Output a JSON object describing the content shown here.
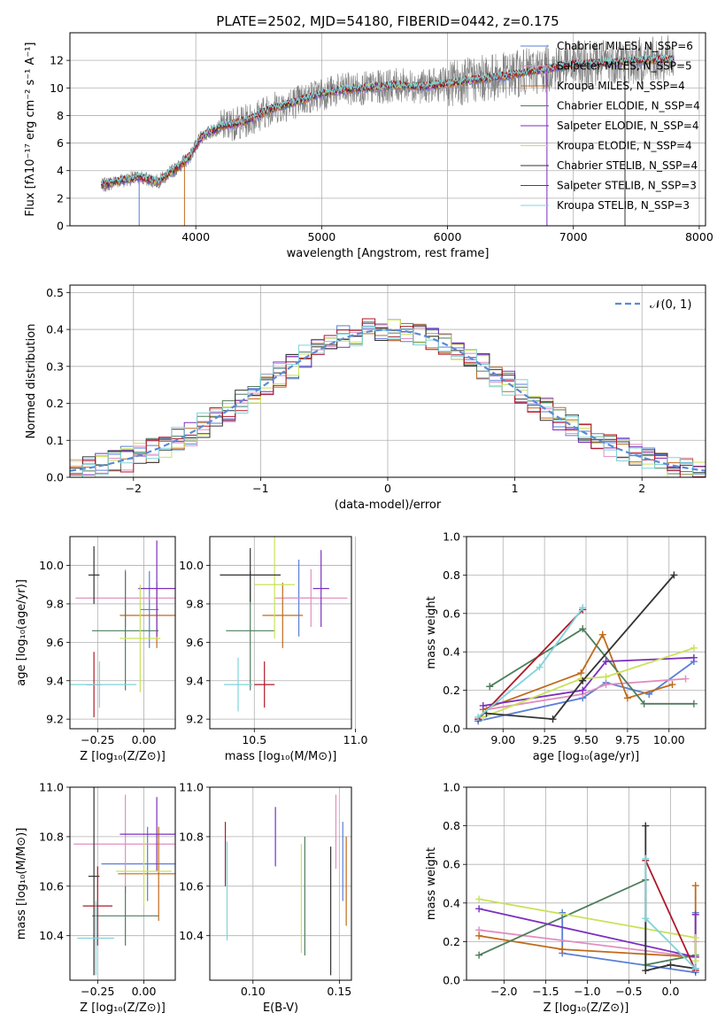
{
  "figure": {
    "title": "PLATE=2502, MJD=54180, FIBERID=0442, z=0.175"
  },
  "colors": {
    "data": "#808080",
    "series": [
      "#5a7fd6",
      "#e08ec0",
      "#c06a1a",
      "#4e7d5b",
      "#7b2fbf",
      "#c9e25a",
      "#333333",
      "#b0182a",
      "#7fd4da"
    ]
  },
  "chart_data": [
    {
      "type": "line",
      "panel": "spectrum",
      "xlabel": "wavelength [Angstrom, rest frame]",
      "ylabel": "Flux [fλ10⁻¹⁷ erg cm⁻² s⁻¹ A⁻¹]",
      "xlim": [
        3000,
        8050
      ],
      "ylim": [
        0,
        14
      ],
      "xticks": [
        "4000",
        "5000",
        "6000",
        "7000",
        "8000"
      ],
      "yticks": [
        "0",
        "2",
        "4",
        "6",
        "8",
        "10",
        "12"
      ],
      "legend": "top-right",
      "series": [
        {
          "name": "Chabrier MILES, N_SSP=6"
        },
        {
          "name": "Salpeter MILES, N_SSP=5"
        },
        {
          "name": "Kroupa MILES, N_SSP=4"
        },
        {
          "name": "Chabrier ELODIE, N_SSP=4"
        },
        {
          "name": "Salpeter ELODIE, N_SSP=4"
        },
        {
          "name": "Kroupa ELODIE, N_SSP=4"
        },
        {
          "name": "Chabrier STELIB, N_SSP=4"
        },
        {
          "name": "Salpeter STELIB, N_SSP=3"
        },
        {
          "name": "Kroupa STELIB, N_SSP=3"
        }
      ],
      "continuum": {
        "x": [
          3250,
          3400,
          3550,
          3700,
          3850,
          3950,
          4050,
          4200,
          4400,
          4600,
          4800,
          5000,
          5200,
          5400,
          5600,
          5800,
          6000,
          6200,
          6400,
          6600,
          6800,
          7000,
          7200,
          7400,
          7600,
          7800
        ],
        "y": [
          2.9,
          3.3,
          3.5,
          3.2,
          4.2,
          5.0,
          6.5,
          7.2,
          7.6,
          8.5,
          9.0,
          9.6,
          9.9,
          10.0,
          10.2,
          10.1,
          10.3,
          10.6,
          10.8,
          11.1,
          11.4,
          11.7,
          11.8,
          11.9,
          12.0,
          12.1
        ]
      }
    },
    {
      "type": "line",
      "panel": "residuals",
      "xlabel": "(data-model)/error",
      "ylabel": "Normed distribution",
      "xlim": [
        -2.5,
        2.5
      ],
      "ylim": [
        0,
        0.52
      ],
      "xticks": [
        "−2",
        "−1",
        "0",
        "1",
        "2"
      ],
      "yticks": [
        "0.0",
        "0.1",
        "0.2",
        "0.3",
        "0.4",
        "0.5"
      ],
      "legend": "top-right",
      "legend_label": "𝒩(0, 1)",
      "reference": {
        "name": "𝒩(0, 1)",
        "mean": 0,
        "sigma": 1
      }
    },
    {
      "type": "scatter",
      "panel": "age-vs-Z",
      "xlabel": "Z [log₁₀(Z/Z⊙)]",
      "ylabel": "age  [log₁₀(age/yr)]",
      "xlim": [
        -0.4,
        0.17
      ],
      "ylim": [
        9.15,
        10.15
      ],
      "xticks": [
        "−0.25",
        "0.00"
      ],
      "yticks": [
        "9.2",
        "9.4",
        "9.6",
        "9.8",
        "10.0"
      ],
      "points": [
        {
          "x": 0.03,
          "y": 9.77,
          "xerr": 0.05,
          "yerr": 0.2
        },
        {
          "x": -0.1,
          "y": 9.83,
          "xerr": 0.27,
          "yerr": 0.15
        },
        {
          "x": 0.07,
          "y": 9.74,
          "xerr": 0.2,
          "yerr": 0.17
        },
        {
          "x": -0.1,
          "y": 9.66,
          "xerr": 0.18,
          "yerr": 0.31
        },
        {
          "x": 0.07,
          "y": 9.88,
          "xerr": 0.1,
          "yerr": 0.25
        },
        {
          "x": -0.02,
          "y": 9.62,
          "xerr": 0.11,
          "yerr": 0.28
        },
        {
          "x": -0.27,
          "y": 9.95,
          "xerr": 0.03,
          "yerr": 0.15
        },
        {
          "x": -0.27,
          "y": 9.38,
          "xerr": 0.04,
          "yerr": 0.17
        },
        {
          "x": -0.24,
          "y": 9.38,
          "xerr": 0.2,
          "yerr": 0.12
        }
      ]
    },
    {
      "type": "scatter",
      "panel": "age-vs-mass",
      "xlabel": "mass [log₁₀(M/M⊙)]",
      "ylabel": "",
      "xlim": [
        10.28,
        10.98
      ],
      "ylim": [
        9.15,
        10.15
      ],
      "xticks": [
        "10.5",
        "11.0"
      ],
      "yticks": [
        "9.2",
        "9.4",
        "9.6",
        "9.8",
        "10.0"
      ],
      "points": [
        {
          "x": 10.72,
          "y": 9.83,
          "xerr": 0.08,
          "yerr": 0.2
        },
        {
          "x": 10.78,
          "y": 9.83,
          "xerr": 0.18,
          "yerr": 0.15
        },
        {
          "x": 10.64,
          "y": 9.74,
          "xerr": 0.1,
          "yerr": 0.17
        },
        {
          "x": 10.48,
          "y": 9.66,
          "xerr": 0.12,
          "yerr": 0.31
        },
        {
          "x": 10.83,
          "y": 9.88,
          "xerr": 0.04,
          "yerr": 0.2
        },
        {
          "x": 10.6,
          "y": 9.9,
          "xerr": 0.1,
          "yerr": 0.28
        },
        {
          "x": 10.48,
          "y": 9.95,
          "xerr": 0.15,
          "yerr": 0.14
        },
        {
          "x": 10.55,
          "y": 9.38,
          "xerr": 0.05,
          "yerr": 0.12
        },
        {
          "x": 10.42,
          "y": 9.38,
          "xerr": 0.07,
          "yerr": 0.14
        }
      ]
    },
    {
      "type": "line",
      "panel": "weight-vs-age",
      "xlabel": "age  [log₁₀(age/yr)]",
      "ylabel": "mass weight",
      "xlim": [
        8.78,
        10.22
      ],
      "ylim": [
        0,
        1
      ],
      "xticks": [
        "9.00",
        "9.25",
        "9.50",
        "9.75",
        "10.00"
      ],
      "yticks": [
        "0.0",
        "0.2",
        "0.4",
        "0.6",
        "0.8",
        "1.0"
      ],
      "series": [
        {
          "x": [
            8.85,
            9.48,
            9.62,
            9.88,
            10.15
          ],
          "y": [
            0.04,
            0.16,
            0.24,
            0.18,
            0.35
          ]
        },
        {
          "x": [
            8.9,
            9.48,
            9.62,
            10.1
          ],
          "y": [
            0.1,
            0.18,
            0.23,
            0.26
          ]
        },
        {
          "x": [
            8.88,
            9.47,
            9.6,
            9.75,
            10.02
          ],
          "y": [
            0.1,
            0.29,
            0.49,
            0.16,
            0.23
          ]
        },
        {
          "x": [
            8.92,
            9.48,
            9.85,
            10.15
          ],
          "y": [
            0.22,
            0.52,
            0.13,
            0.13
          ]
        },
        {
          "x": [
            8.88,
            9.48,
            9.62,
            10.15
          ],
          "y": [
            0.12,
            0.2,
            0.35,
            0.37
          ]
        },
        {
          "x": [
            8.88,
            9.47,
            9.62,
            10.15
          ],
          "y": [
            0.06,
            0.26,
            0.27,
            0.42
          ]
        },
        {
          "x": [
            8.9,
            9.3,
            9.48,
            10.03
          ],
          "y": [
            0.08,
            0.05,
            0.25,
            0.8
          ]
        },
        {
          "x": [
            8.85,
            9.48
          ],
          "y": [
            0.05,
            0.62
          ]
        },
        {
          "x": [
            8.85,
            9.22,
            9.48
          ],
          "y": [
            0.06,
            0.32,
            0.63
          ]
        }
      ]
    },
    {
      "type": "scatter",
      "panel": "mass-vs-Z",
      "xlabel": "Z [log₁₀(Z/Z⊙)]",
      "ylabel": "mass [log₁₀(M/M⊙)]",
      "xlim": [
        -0.4,
        0.17
      ],
      "ylim": [
        10.22,
        11.0
      ],
      "xticks": [
        "−0.25",
        "0.00"
      ],
      "yticks": [
        "10.4",
        "10.6",
        "10.8",
        "11.0"
      ],
      "points": [
        {
          "x": 0.02,
          "y": 10.69,
          "xerr": 0.25,
          "yerr": 0.15
        },
        {
          "x": -0.1,
          "y": 10.77,
          "xerr": 0.28,
          "yerr": 0.2
        },
        {
          "x": 0.08,
          "y": 10.65,
          "xerr": 0.22,
          "yerr": 0.19
        },
        {
          "x": -0.1,
          "y": 10.48,
          "xerr": 0.18,
          "yerr": 0.12
        },
        {
          "x": 0.07,
          "y": 10.81,
          "xerr": 0.2,
          "yerr": 0.15
        },
        {
          "x": 0.0,
          "y": 10.66,
          "xerr": 0.15,
          "yerr": 0.14
        },
        {
          "x": -0.27,
          "y": 10.64,
          "xerr": 0.03,
          "yerr": 0.4
        },
        {
          "x": -0.25,
          "y": 10.52,
          "xerr": 0.08,
          "yerr": 0.16
        },
        {
          "x": -0.26,
          "y": 10.39,
          "xerr": 0.1,
          "yerr": 0.15
        }
      ]
    },
    {
      "type": "scatter",
      "panel": "mass-vs-EBV",
      "xlabel": "E(B-V)",
      "ylabel": "",
      "xlim": [
        0.075,
        0.157
      ],
      "ylim": [
        10.22,
        11.0
      ],
      "xticks": [
        "0.10",
        "0.15"
      ],
      "yticks": [
        "10.4",
        "10.6",
        "10.8",
        "11.0"
      ],
      "points": [
        {
          "x": 0.152,
          "y": 10.7,
          "yerr": 0.16
        },
        {
          "x": 0.148,
          "y": 10.82,
          "yerr": 0.15
        },
        {
          "x": 0.154,
          "y": 10.62,
          "yerr": 0.18
        },
        {
          "x": 0.13,
          "y": 10.56,
          "yerr": 0.24
        },
        {
          "x": 0.113,
          "y": 10.8,
          "yerr": 0.12
        },
        {
          "x": 0.128,
          "y": 10.55,
          "yerr": 0.22
        },
        {
          "x": 0.145,
          "y": 10.5,
          "yerr": 0.26
        },
        {
          "x": 0.084,
          "y": 10.73,
          "yerr": 0.13
        },
        {
          "x": 0.085,
          "y": 10.58,
          "yerr": 0.2
        }
      ]
    },
    {
      "type": "line",
      "panel": "weight-vs-Z",
      "xlabel": "Z [log₁₀(Z/Z⊙)]",
      "ylabel": "mass weight",
      "xlim": [
        -2.45,
        0.42
      ],
      "ylim": [
        0,
        1
      ],
      "xticks": [
        "−2.0",
        "−1.5",
        "−1.0",
        "−0.5",
        "0.0"
      ],
      "yticks": [
        "0.0",
        "0.2",
        "0.4",
        "0.6",
        "0.8",
        "1.0"
      ],
      "series": [
        {
          "x": [
            -1.3,
            -1.3,
            0.3,
            0.3
          ],
          "y": [
            0.35,
            0.14,
            0.04,
            0.35
          ]
        },
        {
          "x": [
            -2.3,
            0.3,
            0.3
          ],
          "y": [
            0.26,
            0.12,
            0.2
          ]
        },
        {
          "x": [
            -2.3,
            -1.3,
            0.3,
            0.3
          ],
          "y": [
            0.23,
            0.16,
            0.12,
            0.49
          ]
        },
        {
          "x": [
            -2.3,
            -0.3,
            -0.3,
            0.3
          ],
          "y": [
            0.13,
            0.52,
            0.08,
            0.13
          ]
        },
        {
          "x": [
            -2.3,
            0.3,
            0.3
          ],
          "y": [
            0.37,
            0.12,
            0.34
          ]
        },
        {
          "x": [
            -2.3,
            0.3,
            0.3
          ],
          "y": [
            0.42,
            0.22,
            0.1
          ]
        },
        {
          "x": [
            -0.3,
            -0.3,
            0.0,
            0.3
          ],
          "y": [
            0.8,
            0.05,
            0.08,
            0.06
          ]
        },
        {
          "x": [
            -0.3,
            0.3
          ],
          "y": [
            0.62,
            0.05
          ]
        },
        {
          "x": [
            -0.3,
            -0.3,
            0.3
          ],
          "y": [
            0.63,
            0.32,
            0.06
          ]
        }
      ]
    }
  ]
}
